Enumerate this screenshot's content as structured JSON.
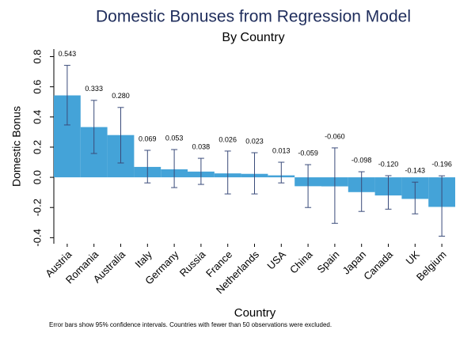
{
  "chart_data": {
    "type": "bar",
    "title": "Domestic Bonuses from Regression Model",
    "subtitle": "By Country",
    "x_label": "Country",
    "y_label": "Domestic Bonus",
    "note": "Error bars show 95% confidence intervals. Countries with fewer than 50 observations were excluded.",
    "categories": [
      "Austria",
      "Romania",
      "Australia",
      "Italy",
      "Germany",
      "Russia",
      "France",
      "Netherlands",
      "USA",
      "China",
      "Spain",
      "Japan",
      "Canada",
      "UK",
      "Belgium"
    ],
    "values": [
      0.543,
      0.333,
      0.28,
      0.069,
      0.053,
      0.038,
      0.026,
      0.023,
      0.013,
      -0.059,
      -0.06,
      -0.098,
      -0.12,
      -0.143,
      -0.196
    ],
    "value_labels": [
      "0.543",
      "0.333",
      "0.280",
      "0.069",
      "0.053",
      "0.038",
      "0.026",
      "0.023",
      "0.013",
      "-0.059",
      "-0.060",
      "-0.098",
      "-0.120",
      "-0.143",
      "-0.196"
    ],
    "ci_low": [
      0.347,
      0.158,
      0.095,
      -0.037,
      -0.068,
      -0.047,
      -0.11,
      -0.11,
      -0.037,
      -0.2,
      -0.305,
      -0.226,
      -0.211,
      -0.242,
      -0.39
    ],
    "ci_high": [
      0.742,
      0.51,
      0.463,
      0.179,
      0.184,
      0.126,
      0.174,
      0.163,
      0.1,
      0.084,
      0.195,
      0.037,
      0.011,
      -0.032,
      0.01
    ],
    "color": "#44a3d8",
    "error_color": "#3a4b7a",
    "ylim": [
      -0.44,
      0.85
    ],
    "yticks": [
      -0.4,
      -0.2,
      {
        "value": 0,
        "label": "0.0"
      },
      0.2,
      0.4,
      0.6,
      0.8
    ]
  }
}
